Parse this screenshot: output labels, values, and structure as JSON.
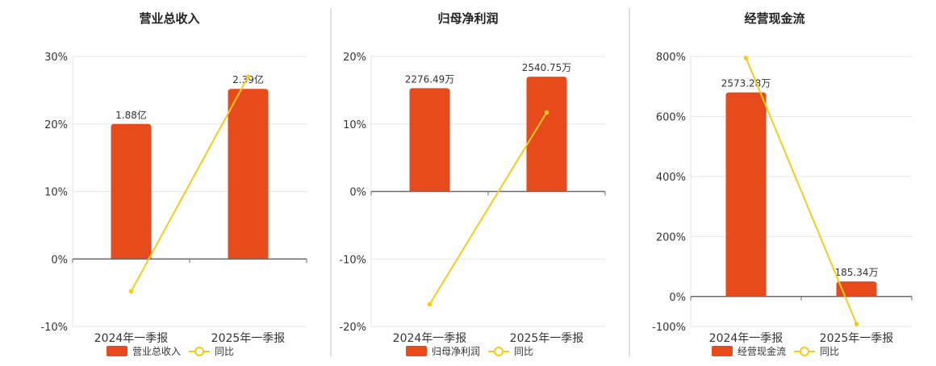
{
  "colors": {
    "bar": "#E84B1B",
    "line": "#F2CC1A",
    "grid": "#E6E6E6",
    "axis": "#6B6B6B",
    "text": "#333333",
    "separator": "#BFBFBF"
  },
  "chart_data": [
    {
      "type": "bar",
      "title": "营业总收入",
      "categories": [
        "2024年一季报",
        "2025年一季报"
      ],
      "ylim": [
        -10,
        30
      ],
      "yticks": [
        -10,
        0,
        10,
        20,
        30
      ],
      "ytick_labels": [
        "-10%",
        "0%",
        "10%",
        "20%",
        "30%"
      ],
      "series": [
        {
          "name": "营业总收入",
          "kind": "bar",
          "values": [
            20,
            25.2
          ],
          "labels": [
            "1.88亿",
            "2.39亿"
          ]
        },
        {
          "name": "同比",
          "kind": "line",
          "values": [
            -4.8,
            27
          ]
        }
      ],
      "grid": true,
      "legend": "bottom"
    },
    {
      "type": "bar",
      "title": "归母净利润",
      "categories": [
        "2024年一季报",
        "2025年一季报"
      ],
      "ylim": [
        -20,
        20
      ],
      "yticks": [
        -20,
        -10,
        0,
        10,
        20
      ],
      "ytick_labels": [
        "-20%",
        "-10%",
        "0%",
        "10%",
        "20%"
      ],
      "series": [
        {
          "name": "归母净利润",
          "kind": "bar",
          "values": [
            15.3,
            17
          ],
          "labels": [
            "2276.49万",
            "2540.75万"
          ]
        },
        {
          "name": "同比",
          "kind": "line",
          "values": [
            -16.7,
            11.7
          ]
        }
      ],
      "grid": true,
      "legend": "bottom"
    },
    {
      "type": "bar",
      "title": "经营现金流",
      "categories": [
        "2024年一季报",
        "2025年一季报"
      ],
      "ylim": [
        -100,
        800
      ],
      "yticks": [
        -100,
        0,
        200,
        400,
        600,
        800
      ],
      "ytick_labels": [
        "-100%",
        "0%",
        "200%",
        "400%",
        "600%",
        "800%"
      ],
      "series": [
        {
          "name": "经营现金流",
          "kind": "bar",
          "values": [
            680,
            50
          ],
          "labels": [
            "2573.28万",
            "185.34万"
          ]
        },
        {
          "name": "同比",
          "kind": "line",
          "values": [
            795,
            -92
          ]
        }
      ],
      "grid": true,
      "legend": "bottom"
    }
  ]
}
